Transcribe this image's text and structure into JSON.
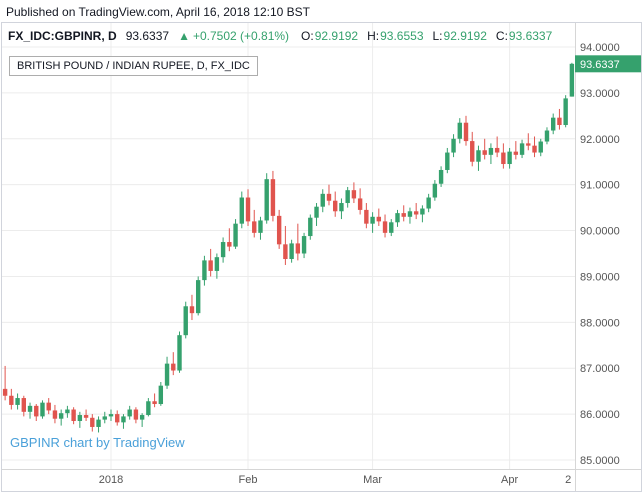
{
  "published_bar": {
    "text": "Published on TradingView.com, April 16, 2018 12:10 BST"
  },
  "legend": {
    "symbol": "FX_IDC:GBPINR, D",
    "price": "93.6337",
    "change_arrow": "▲",
    "change": "+0.7502 (+0.81%)",
    "ohlc": [
      {
        "label": "O:",
        "value": "92.9192"
      },
      {
        "label": "H:",
        "value": "93.6553"
      },
      {
        "label": "L:",
        "value": "92.9192"
      },
      {
        "label": "C:",
        "value": "93.6337"
      }
    ]
  },
  "chart_title": "BRITISH POUND / INDIAN RUPEE, D, FX_IDC",
  "watermark_text": "GBPINR chart by TradingView",
  "colors": {
    "up": "#35a16d",
    "down": "#e0544e",
    "grid": "#ececec",
    "axis_line": "#d6d6d6",
    "axis_text": "#555555",
    "tag_bg": "#35a16d",
    "tag_text": "#ffffff",
    "text": "#131722",
    "watermark": "#4aa0d9",
    "border": "#d1d4dc"
  },
  "chart_data": {
    "type": "candlestick",
    "title": "BRITISH POUND / INDIAN RUPEE, D, FX_IDC",
    "symbol": "FX_IDC:GBPINR",
    "interval": "D",
    "xlabel": "",
    "ylabel": "",
    "ylim": [
      85.0,
      94.0
    ],
    "grid": true,
    "y_ticks": [
      {
        "value": 94,
        "label": "94.0000"
      },
      {
        "value": 93,
        "label": "93.0000"
      },
      {
        "value": 92,
        "label": "92.0000"
      },
      {
        "value": 91,
        "label": "91.0000"
      },
      {
        "value": 90,
        "label": "90.0000"
      },
      {
        "value": 89,
        "label": "89.0000"
      },
      {
        "value": 88,
        "label": "88.0000"
      },
      {
        "value": 87,
        "label": "87.0000"
      },
      {
        "value": 86,
        "label": "86.0000"
      },
      {
        "value": 85,
        "label": "85.0000"
      }
    ],
    "x_ticks": [
      {
        "index": 17,
        "label": "2018"
      },
      {
        "index": 39,
        "label": "Feb"
      },
      {
        "index": 59,
        "label": "Mar"
      },
      {
        "index": 81,
        "label": "Apr"
      },
      {
        "index": 90.4,
        "label": "2",
        "grid": false
      }
    ],
    "last_price": 93.6337,
    "last_price_label": "93.6337",
    "last_ohlc": {
      "open": 92.9192,
      "high": 93.6553,
      "low": 92.9192,
      "close": 93.6337
    },
    "candles": [
      [
        86.55,
        87.05,
        86.3,
        86.4
      ],
      [
        86.4,
        86.55,
        86.1,
        86.2
      ],
      [
        86.2,
        86.45,
        86.1,
        86.35
      ],
      [
        86.35,
        86.4,
        85.95,
        86.05
      ],
      [
        86.05,
        86.25,
        85.9,
        86.18
      ],
      [
        86.18,
        86.22,
        85.85,
        85.95
      ],
      [
        85.95,
        86.3,
        85.9,
        86.25
      ],
      [
        86.25,
        86.35,
        86.0,
        86.08
      ],
      [
        86.08,
        86.2,
        85.8,
        85.9
      ],
      [
        85.9,
        86.1,
        85.75,
        86.02
      ],
      [
        86.02,
        86.18,
        85.92,
        86.1
      ],
      [
        86.1,
        86.15,
        85.78,
        85.85
      ],
      [
        85.85,
        86.05,
        85.7,
        85.98
      ],
      [
        85.98,
        86.1,
        85.85,
        85.92
      ],
      [
        85.92,
        86.0,
        85.62,
        85.72
      ],
      [
        85.72,
        85.95,
        85.6,
        85.88
      ],
      [
        85.88,
        86.05,
        85.8,
        85.95
      ],
      [
        85.95,
        86.1,
        85.85,
        86.0
      ],
      [
        86.0,
        86.08,
        85.75,
        85.82
      ],
      [
        85.82,
        86.0,
        85.68,
        85.95
      ],
      [
        85.95,
        86.18,
        85.88,
        86.1
      ],
      [
        86.1,
        86.15,
        85.8,
        85.88
      ],
      [
        85.88,
        86.02,
        85.72,
        85.98
      ],
      [
        85.98,
        86.35,
        85.95,
        86.28
      ],
      [
        86.28,
        86.45,
        86.15,
        86.22
      ],
      [
        86.22,
        86.7,
        86.18,
        86.62
      ],
      [
        86.62,
        87.25,
        86.55,
        87.1
      ],
      [
        87.1,
        87.35,
        86.85,
        86.95
      ],
      [
        86.95,
        87.8,
        86.9,
        87.72
      ],
      [
        87.72,
        88.45,
        87.65,
        88.35
      ],
      [
        88.35,
        88.6,
        88.05,
        88.2
      ],
      [
        88.2,
        89.0,
        88.15,
        88.92
      ],
      [
        88.92,
        89.45,
        88.8,
        89.35
      ],
      [
        89.35,
        89.6,
        89.0,
        89.12
      ],
      [
        89.12,
        89.5,
        88.95,
        89.42
      ],
      [
        89.42,
        89.85,
        89.3,
        89.75
      ],
      [
        89.75,
        90.05,
        89.55,
        89.65
      ],
      [
        89.65,
        90.25,
        89.6,
        90.15
      ],
      [
        90.15,
        90.85,
        90.05,
        90.72
      ],
      [
        90.72,
        90.9,
        90.1,
        90.2
      ],
      [
        90.2,
        90.45,
        89.85,
        89.95
      ],
      [
        89.95,
        90.3,
        89.8,
        90.22
      ],
      [
        90.22,
        91.25,
        90.15,
        91.12
      ],
      [
        91.12,
        91.3,
        90.2,
        90.32
      ],
      [
        90.32,
        90.45,
        89.6,
        89.7
      ],
      [
        89.7,
        90.1,
        89.25,
        89.38
      ],
      [
        89.38,
        89.8,
        89.3,
        89.72
      ],
      [
        89.72,
        90.15,
        89.35,
        89.5
      ],
      [
        89.5,
        89.95,
        89.4,
        89.88
      ],
      [
        89.88,
        90.35,
        89.8,
        90.28
      ],
      [
        90.28,
        90.6,
        90.1,
        90.52
      ],
      [
        90.52,
        90.9,
        90.4,
        90.8
      ],
      [
        90.8,
        91.0,
        90.55,
        90.65
      ],
      [
        90.65,
        90.85,
        90.3,
        90.42
      ],
      [
        90.42,
        90.7,
        90.25,
        90.6
      ],
      [
        90.6,
        90.95,
        90.5,
        90.88
      ],
      [
        90.88,
        91.05,
        90.6,
        90.7
      ],
      [
        90.7,
        90.92,
        90.35,
        90.45
      ],
      [
        90.45,
        90.6,
        90.05,
        90.15
      ],
      [
        90.15,
        90.4,
        89.95,
        90.3
      ],
      [
        90.3,
        90.48,
        90.1,
        90.2
      ],
      [
        90.2,
        90.35,
        89.85,
        89.95
      ],
      [
        89.95,
        90.25,
        89.88,
        90.18
      ],
      [
        90.18,
        90.45,
        90.08,
        90.38
      ],
      [
        90.38,
        90.55,
        90.2,
        90.3
      ],
      [
        90.3,
        90.5,
        90.15,
        90.42
      ],
      [
        90.42,
        90.6,
        90.25,
        90.35
      ],
      [
        90.35,
        90.55,
        90.18,
        90.48
      ],
      [
        90.48,
        90.8,
        90.4,
        90.72
      ],
      [
        90.72,
        91.1,
        90.65,
        91.02
      ],
      [
        91.02,
        91.4,
        90.95,
        91.32
      ],
      [
        91.32,
        91.8,
        91.25,
        91.7
      ],
      [
        91.7,
        92.1,
        91.6,
        92.0
      ],
      [
        92.0,
        92.45,
        91.9,
        92.35
      ],
      [
        92.35,
        92.5,
        91.85,
        91.95
      ],
      [
        91.95,
        92.15,
        91.4,
        91.5
      ],
      [
        91.5,
        91.85,
        91.3,
        91.75
      ],
      [
        91.75,
        92.0,
        91.55,
        91.65
      ],
      [
        91.65,
        91.9,
        91.45,
        91.8
      ],
      [
        91.8,
        92.05,
        91.6,
        91.7
      ],
      [
        91.7,
        91.9,
        91.35,
        91.45
      ],
      [
        91.45,
        91.8,
        91.35,
        91.72
      ],
      [
        91.72,
        91.95,
        91.55,
        91.65
      ],
      [
        91.65,
        91.98,
        91.58,
        91.9
      ],
      [
        91.9,
        92.12,
        91.75,
        91.85
      ],
      [
        91.85,
        92.05,
        91.6,
        91.7
      ],
      [
        91.7,
        92.0,
        91.62,
        91.94
      ],
      [
        91.94,
        92.25,
        91.88,
        92.18
      ],
      [
        92.18,
        92.55,
        92.1,
        92.46
      ],
      [
        92.46,
        92.65,
        92.2,
        92.3
      ],
      [
        92.3,
        92.95,
        92.25,
        92.88
      ],
      [
        92.9192,
        93.6553,
        92.9192,
        93.6337
      ]
    ]
  }
}
